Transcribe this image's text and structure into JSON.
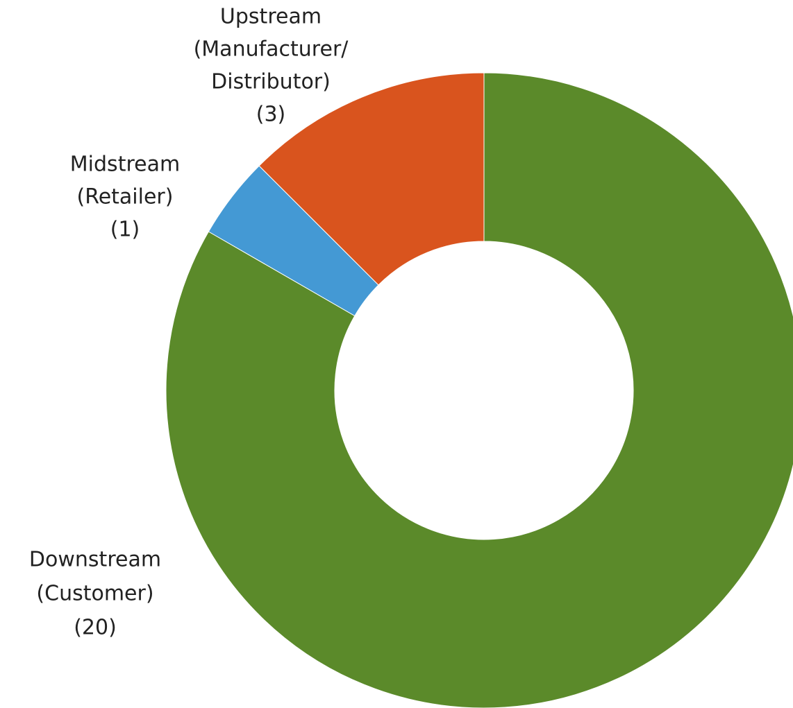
{
  "chart_data": {
    "type": "donut",
    "categories": [
      [
        "Downstream",
        "(Customer)"
      ],
      [
        "Midstream",
        "(Retailer)"
      ],
      [
        "Upstream",
        "(Manufacturer/",
        "Distributor)"
      ]
    ],
    "values": [
      20,
      1,
      3
    ],
    "value_labels": [
      "(20)",
      "(1)",
      "(3)"
    ],
    "colors": [
      "#5b8a2a",
      "#4499d4",
      "#d9541e"
    ]
  }
}
